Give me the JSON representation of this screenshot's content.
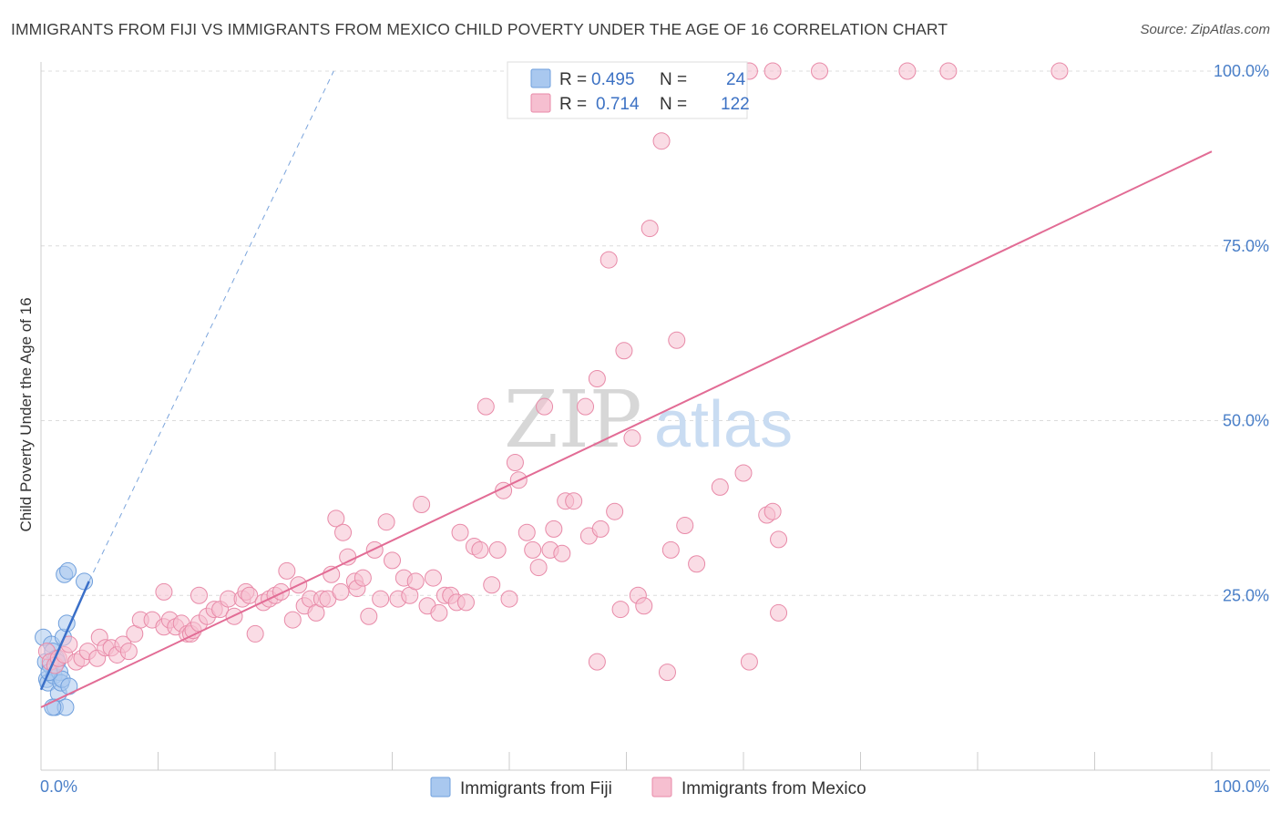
{
  "title": "IMMIGRANTS FROM FIJI VS IMMIGRANTS FROM MEXICO CHILD POVERTY UNDER THE AGE OF 16 CORRELATION CHART",
  "source": "Source: ZipAtlas.com",
  "watermark": {
    "zip": "ZIP",
    "atlas": "atlas"
  },
  "legend_box": {
    "rows": [
      {
        "r_label": "R =",
        "r_value": "0.495",
        "n_label": "N =",
        "n_value": "24",
        "color": "#a9c8ef",
        "stroke": "#6f9fdc"
      },
      {
        "r_label": "R =",
        "r_value": "0.714",
        "n_label": "N =",
        "n_value": "122",
        "color": "#f6bfd0",
        "stroke": "#e88aa8"
      }
    ]
  },
  "chart_data": {
    "type": "scatter",
    "title": "IMMIGRANTS FROM FIJI VS IMMIGRANTS FROM MEXICO CHILD POVERTY UNDER THE AGE OF 16 CORRELATION CHART",
    "xlabel": "",
    "ylabel": "Child Poverty Under the Age of 16",
    "xlim": [
      0,
      100
    ],
    "ylim": [
      0,
      100
    ],
    "x_tick_labels": [
      "0.0%",
      "100.0%"
    ],
    "y_tick_labels": [
      "25.0%",
      "50.0%",
      "75.0%",
      "100.0%"
    ],
    "y_ticks": [
      25,
      50,
      75,
      100
    ],
    "grid": true,
    "legend_position": "bottom",
    "series": [
      {
        "name": "Immigrants from Fiji",
        "color": "#a9c8ef",
        "stroke": "#6f9fdc",
        "line_color": "#3a6fc8",
        "trend": {
          "x0": 0,
          "y0": 11.5,
          "x1": 4.1,
          "y1": 27,
          "dashed_to": [
            25,
            100
          ]
        },
        "points": [
          [
            0.2,
            19
          ],
          [
            0.4,
            15.5
          ],
          [
            0.5,
            13
          ],
          [
            0.6,
            12.5
          ],
          [
            0.8,
            15
          ],
          [
            0.9,
            18
          ],
          [
            1.0,
            17
          ],
          [
            1.1,
            13.5
          ],
          [
            1.2,
            9
          ],
          [
            1.3,
            16
          ],
          [
            1.4,
            15.5
          ],
          [
            1.5,
            11
          ],
          [
            1.6,
            14
          ],
          [
            1.7,
            12.5
          ],
          [
            1.8,
            13
          ],
          [
            1.9,
            19
          ],
          [
            2.0,
            28
          ],
          [
            2.1,
            9
          ],
          [
            2.2,
            21
          ],
          [
            2.3,
            28.5
          ],
          [
            2.4,
            12
          ],
          [
            0.7,
            14
          ],
          [
            1.0,
            9
          ],
          [
            3.7,
            27
          ]
        ]
      },
      {
        "name": "Immigrants from Mexico",
        "color": "#f6bfd0",
        "stroke": "#e88aa8",
        "line_color": "#e26c95",
        "trend": {
          "x0": 0,
          "y0": 9,
          "x1": 100,
          "y1": 88.5
        },
        "points": [
          [
            0.5,
            17
          ],
          [
            0.8,
            15.5
          ],
          [
            1.2,
            15
          ],
          [
            1.5,
            16
          ],
          [
            2.0,
            16.5
          ],
          [
            2.4,
            18
          ],
          [
            3.0,
            15.5
          ],
          [
            3.5,
            16
          ],
          [
            4.0,
            17
          ],
          [
            4.8,
            16
          ],
          [
            5.0,
            19
          ],
          [
            5.5,
            17.5
          ],
          [
            6.0,
            17.5
          ],
          [
            6.5,
            16.5
          ],
          [
            7.0,
            18
          ],
          [
            7.5,
            17
          ],
          [
            8.0,
            19.5
          ],
          [
            8.5,
            21.5
          ],
          [
            9.5,
            21.5
          ],
          [
            10.5,
            20.5
          ],
          [
            10.5,
            25.5
          ],
          [
            11.0,
            21.5
          ],
          [
            11.5,
            20.5
          ],
          [
            12.0,
            21
          ],
          [
            12.5,
            19.5
          ],
          [
            12.8,
            19.5
          ],
          [
            13.0,
            20
          ],
          [
            13.5,
            21
          ],
          [
            13.5,
            25
          ],
          [
            14.2,
            22
          ],
          [
            14.8,
            23
          ],
          [
            15.3,
            23
          ],
          [
            16.0,
            24.5
          ],
          [
            16.5,
            22
          ],
          [
            17.2,
            24.5
          ],
          [
            17.5,
            25.5
          ],
          [
            17.8,
            25
          ],
          [
            18.3,
            19.5
          ],
          [
            19.0,
            24
          ],
          [
            19.5,
            24.5
          ],
          [
            20.0,
            25
          ],
          [
            20.5,
            25.5
          ],
          [
            21.0,
            28.5
          ],
          [
            21.5,
            21.5
          ],
          [
            22.0,
            26.5
          ],
          [
            22.5,
            23.5
          ],
          [
            23.0,
            24.5
          ],
          [
            23.5,
            22.5
          ],
          [
            24.0,
            24.5
          ],
          [
            24.5,
            24.5
          ],
          [
            24.8,
            28
          ],
          [
            25.2,
            36
          ],
          [
            25.6,
            25.5
          ],
          [
            25.8,
            34
          ],
          [
            26.2,
            30.5
          ],
          [
            26.8,
            27
          ],
          [
            27.0,
            26
          ],
          [
            27.5,
            27.5
          ],
          [
            28.0,
            22
          ],
          [
            28.5,
            31.5
          ],
          [
            29.0,
            24.5
          ],
          [
            29.5,
            35.5
          ],
          [
            30.0,
            30
          ],
          [
            30.5,
            24.5
          ],
          [
            31.0,
            27.5
          ],
          [
            31.5,
            25
          ],
          [
            32.0,
            27
          ],
          [
            32.5,
            38
          ],
          [
            33.0,
            23.5
          ],
          [
            33.5,
            27.5
          ],
          [
            34.0,
            22.5
          ],
          [
            34.5,
            25
          ],
          [
            35.0,
            25
          ],
          [
            35.5,
            24
          ],
          [
            35.8,
            34
          ],
          [
            36.3,
            24
          ],
          [
            37.0,
            32
          ],
          [
            37.5,
            31.5
          ],
          [
            38.0,
            52
          ],
          [
            38.5,
            26.5
          ],
          [
            39.0,
            31.5
          ],
          [
            39.5,
            40
          ],
          [
            40.0,
            24.5
          ],
          [
            40.5,
            44
          ],
          [
            40.8,
            41.5
          ],
          [
            41.5,
            34
          ],
          [
            42.0,
            31.5
          ],
          [
            42.5,
            29
          ],
          [
            43.0,
            52
          ],
          [
            43.5,
            31.5
          ],
          [
            43.8,
            34.5
          ],
          [
            44.5,
            31
          ],
          [
            44.8,
            38.5
          ],
          [
            45.5,
            38.5
          ],
          [
            46.5,
            52
          ],
          [
            46.8,
            33.5
          ],
          [
            47.5,
            56
          ],
          [
            47.8,
            34.5
          ],
          [
            48.5,
            73
          ],
          [
            49.0,
            37
          ],
          [
            49.5,
            23
          ],
          [
            49.8,
            60
          ],
          [
            50.5,
            47.5
          ],
          [
            51.0,
            25
          ],
          [
            51.5,
            23.5
          ],
          [
            52.0,
            77.5
          ],
          [
            53.0,
            90
          ],
          [
            53.5,
            14
          ],
          [
            53.8,
            31.5
          ],
          [
            54.3,
            61.5
          ],
          [
            55.0,
            35
          ],
          [
            56.0,
            29.5
          ],
          [
            58.0,
            40.5
          ],
          [
            60.0,
            42.5
          ],
          [
            60.5,
            15.5
          ],
          [
            62.0,
            36.5
          ],
          [
            63.0,
            33
          ],
          [
            47.5,
            15.5
          ],
          [
            63.0,
            22.5
          ],
          [
            62.5,
            37
          ],
          [
            60.5,
            100
          ],
          [
            62.5,
            100
          ],
          [
            66.5,
            100
          ],
          [
            74.0,
            100
          ],
          [
            77.5,
            100
          ],
          [
            87.0,
            100
          ]
        ]
      }
    ]
  },
  "bottom_legend": {
    "fiji": "Immigrants from Fiji",
    "mexico": "Immigrants from Mexico"
  }
}
